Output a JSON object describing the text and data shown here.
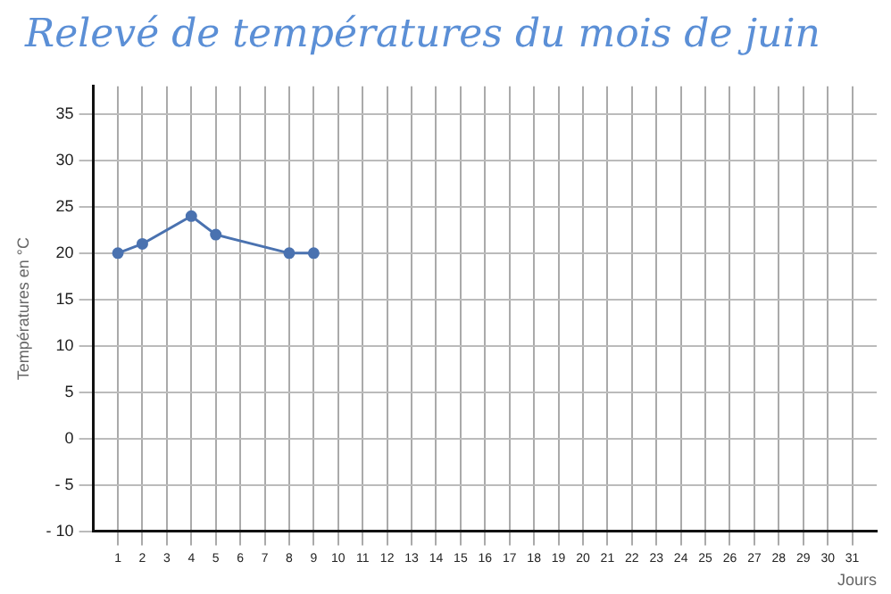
{
  "chart_data": {
    "type": "line",
    "title": "Relevé de températures du mois de juin",
    "ylabel": "Températures en °C",
    "xlabel": "Jours",
    "series": [
      {
        "color": "#4a72b0",
        "x": [
          1,
          2,
          4,
          5,
          8,
          9
        ],
        "values": [
          20,
          21,
          24,
          22,
          20,
          20
        ]
      }
    ],
    "xlim": [
      0,
      32
    ],
    "xticks": [
      1,
      2,
      3,
      4,
      5,
      6,
      7,
      8,
      9,
      10,
      11,
      12,
      13,
      14,
      15,
      16,
      17,
      18,
      19,
      20,
      21,
      22,
      23,
      24,
      25,
      26,
      27,
      28,
      29,
      30,
      31
    ],
    "ylim": [
      -10,
      38
    ],
    "yticks": [
      {
        "value": -10,
        "label": "- 10"
      },
      {
        "value": -5,
        "label": "- 5"
      },
      0,
      5,
      10,
      15,
      20,
      25,
      30,
      35
    ],
    "grid": true,
    "marker": "circle",
    "line_style": "solid",
    "legend": false
  }
}
